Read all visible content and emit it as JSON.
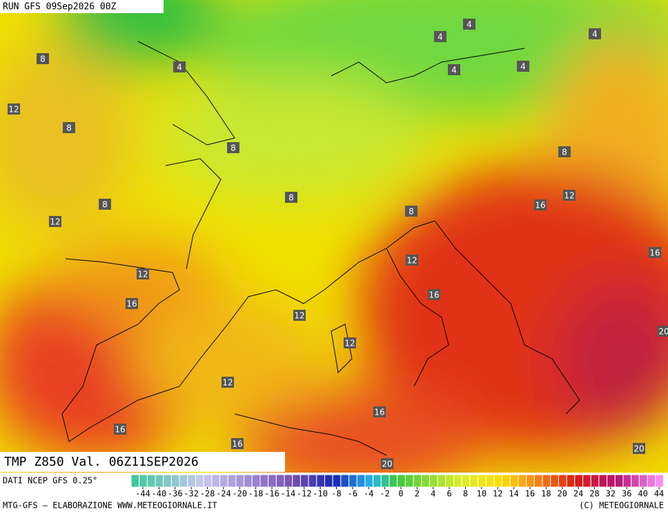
{
  "header": {
    "run": "RUN GFS 09Sep2026 00Z"
  },
  "map": {
    "variable_label": "TMP Z850 Val. 06Z11SEP2026",
    "contour_labels": [
      4,
      4,
      4,
      4,
      4,
      4,
      8,
      8,
      8,
      8,
      8,
      8,
      8,
      12,
      12,
      12,
      12,
      12,
      12,
      12,
      12,
      16,
      16,
      16,
      16,
      16,
      16,
      16,
      20,
      20,
      20
    ]
  },
  "legend": {
    "source": "DATI NCEP GFS 0.25°",
    "ticks": [
      -44,
      -40,
      -36,
      -32,
      -28,
      -24,
      -20,
      -18,
      -16,
      -14,
      -12,
      -10,
      -8,
      -6,
      -4,
      -2,
      0,
      2,
      4,
      6,
      8,
      10,
      12,
      14,
      16,
      18,
      20,
      24,
      28,
      32,
      36,
      40,
      44
    ]
  },
  "footer": {
    "left": "MTG-GFS — ELABORAZIONE WWW.METEOGIORNALE.IT",
    "right": "(C) METEOGIORNALE"
  }
}
